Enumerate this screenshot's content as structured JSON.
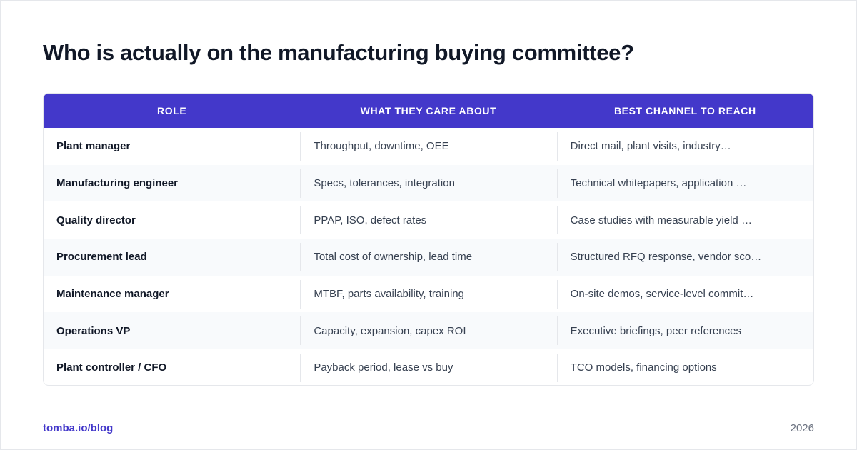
{
  "title": "Who is actually on the manufacturing buying committee?",
  "table": {
    "headers": [
      "ROLE",
      "WHAT THEY CARE ABOUT",
      "BEST CHANNEL TO REACH"
    ],
    "rows": [
      [
        "Plant manager",
        "Throughput, downtime, OEE",
        "Direct mail, plant visits, industry…"
      ],
      [
        "Manufacturing engineer",
        "Specs, tolerances, integration",
        "Technical whitepapers, application …"
      ],
      [
        "Quality director",
        "PPAP, ISO, defect rates",
        "Case studies with measurable yield …"
      ],
      [
        "Procurement lead",
        "Total cost of ownership, lead time",
        "Structured RFQ response, vendor sco…"
      ],
      [
        "Maintenance manager",
        "MTBF, parts availability, training",
        "On-site demos, service-level commit…"
      ],
      [
        "Operations VP",
        "Capacity, expansion, capex ROI",
        "Executive briefings, peer references"
      ],
      [
        "Plant controller / CFO",
        "Payback period, lease vs buy",
        "TCO models, financing options"
      ]
    ]
  },
  "footer": {
    "source": "tomba.io/blog",
    "year": "2026"
  },
  "colors": {
    "header_bg": "#4338ca",
    "accent": "#4338ca"
  }
}
